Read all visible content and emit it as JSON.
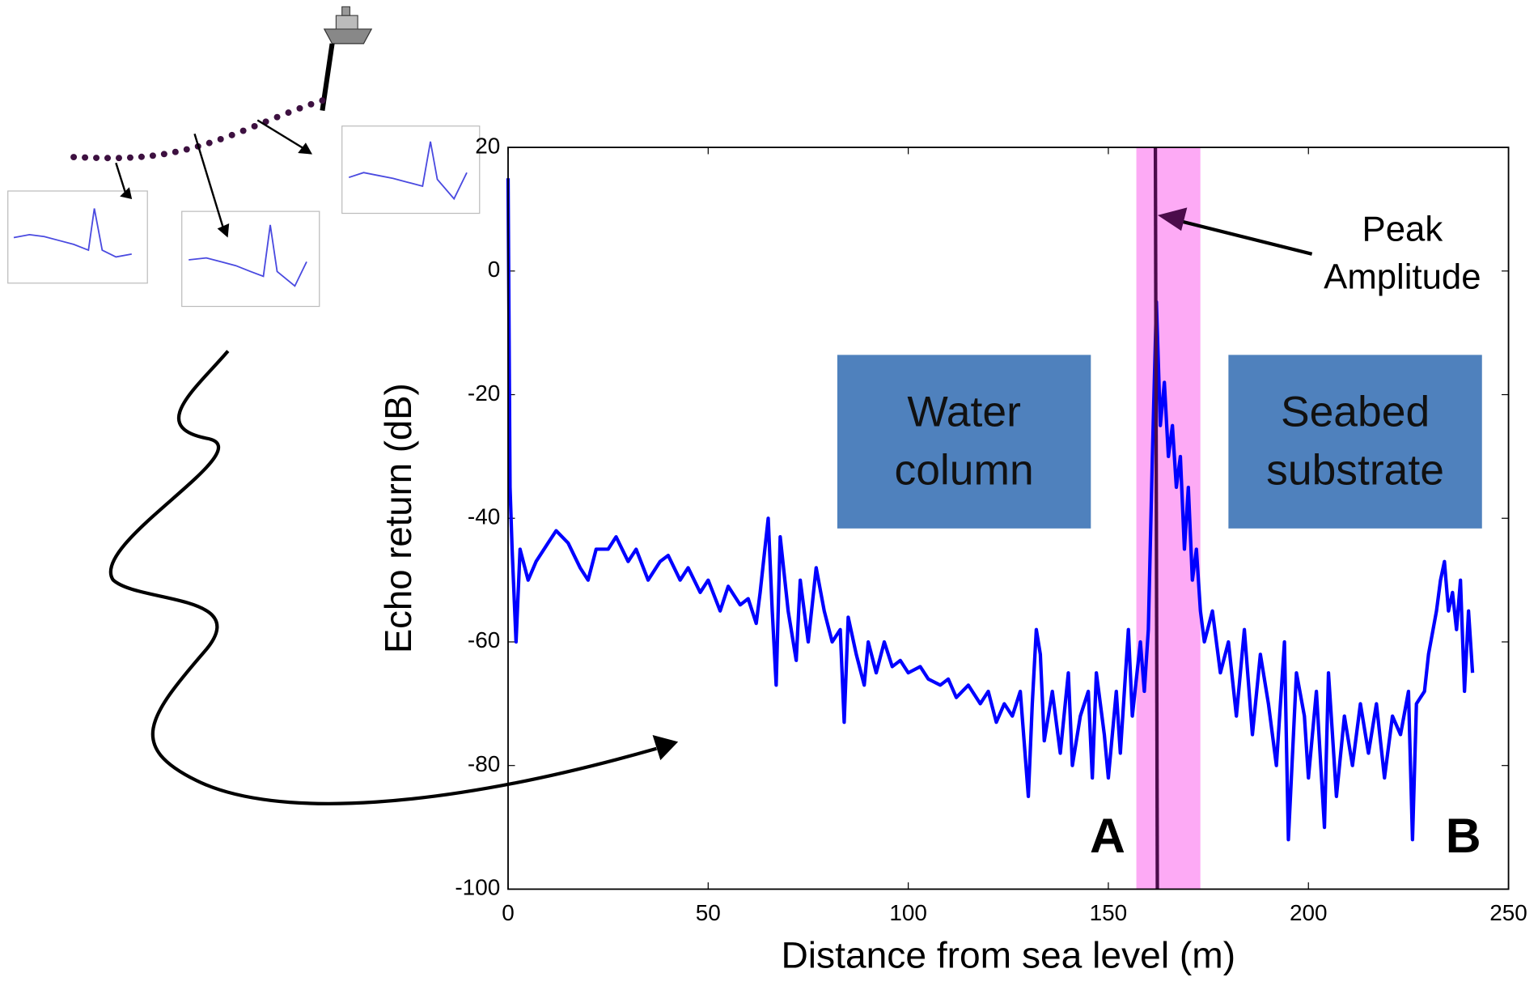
{
  "chart_data": {
    "type": "line",
    "x_label": "Distance from sea level (m)",
    "y_label": "Echo return (dB)",
    "xlim": [
      0,
      250
    ],
    "ylim": [
      -100,
      20
    ],
    "xticks": [
      0,
      50,
      100,
      150,
      200,
      250
    ],
    "yticks": [
      -100,
      -80,
      -60,
      -40,
      -20,
      0,
      20
    ],
    "highlight": [
      157,
      173
    ],
    "highlight_color": "#fdaaf5",
    "peak_x": 162,
    "peak_color": "#4b0c4b",
    "peak_label": [
      "Peak",
      "Amplitude"
    ],
    "box_labels": [
      [
        "Water",
        "column"
      ],
      [
        "Seabed",
        "substrate"
      ]
    ],
    "box_color": "#4f81bd",
    "region_labels": [
      "A",
      "B"
    ],
    "series": [
      {
        "name": "Echo return",
        "color": "#0000ff",
        "x": [
          0,
          0.5,
          1,
          2,
          3,
          5,
          7,
          10,
          12,
          15,
          18,
          20,
          22,
          25,
          27,
          30,
          32,
          35,
          38,
          40,
          43,
          45,
          48,
          50,
          53,
          55,
          58,
          60,
          62,
          63,
          65,
          66,
          67,
          68,
          70,
          72,
          73,
          75,
          77,
          79,
          81,
          83,
          84,
          85,
          87,
          89,
          90,
          92,
          94,
          96,
          98,
          100,
          103,
          105,
          108,
          110,
          112,
          115,
          118,
          120,
          122,
          124,
          126,
          128,
          130,
          131,
          132,
          133,
          134,
          136,
          138,
          140,
          141,
          143,
          145,
          146,
          147,
          149,
          150,
          152,
          153,
          155,
          156,
          158,
          159,
          160,
          161,
          162,
          163,
          164,
          165,
          166,
          167,
          168,
          169,
          170,
          171,
          172,
          173,
          174,
          176,
          178,
          180,
          182,
          184,
          186,
          188,
          190,
          192,
          194,
          195,
          197,
          199,
          200,
          202,
          204,
          205,
          207,
          209,
          211,
          213,
          215,
          217,
          219,
          221,
          223,
          225,
          226,
          227,
          229,
          230,
          232,
          233,
          234,
          235,
          236,
          237,
          238,
          239,
          240,
          241
        ],
        "values": [
          15,
          -35,
          -45,
          -60,
          -45,
          -50,
          -47,
          -44,
          -42,
          -44,
          -48,
          -50,
          -45,
          -45,
          -43,
          -47,
          -45,
          -50,
          -47,
          -46,
          -50,
          -48,
          -52,
          -50,
          -55,
          -51,
          -54,
          -53,
          -57,
          -52,
          -40,
          -55,
          -67,
          -43,
          -55,
          -63,
          -50,
          -60,
          -48,
          -55,
          -60,
          -58,
          -73,
          -56,
          -62,
          -67,
          -60,
          -65,
          -60,
          -64,
          -63,
          -65,
          -64,
          -66,
          -67,
          -66,
          -69,
          -67,
          -70,
          -68,
          -73,
          -70,
          -72,
          -68,
          -85,
          -70,
          -58,
          -62,
          -76,
          -68,
          -78,
          -65,
          -80,
          -72,
          -68,
          -82,
          -65,
          -75,
          -82,
          -68,
          -78,
          -58,
          -72,
          -60,
          -68,
          -58,
          -30,
          -5,
          -25,
          -18,
          -30,
          -25,
          -35,
          -30,
          -45,
          -35,
          -50,
          -45,
          -55,
          -60,
          -55,
          -65,
          -60,
          -72,
          -58,
          -75,
          -62,
          -70,
          -80,
          -60,
          -92,
          -65,
          -72,
          -82,
          -68,
          -90,
          -65,
          -85,
          -72,
          -80,
          -70,
          -78,
          -70,
          -82,
          -72,
          -75,
          -68,
          -92,
          -70,
          -68,
          -62,
          -55,
          -50,
          -47,
          -55,
          -52,
          -58,
          -50,
          -68,
          -55,
          -65
        ]
      }
    ]
  }
}
